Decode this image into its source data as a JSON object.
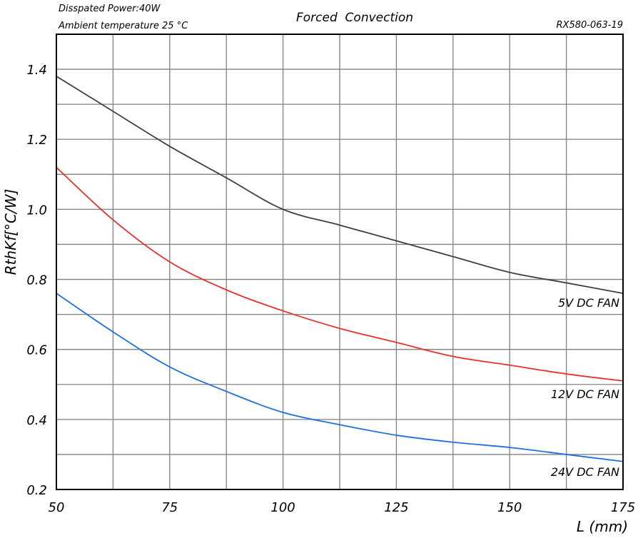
{
  "chart_data": {
    "type": "line",
    "title": "Forced  Convection",
    "notes": [
      "Disspated Power:40W",
      "Ambient temperature 25 °C"
    ],
    "code": "RX580-063-19",
    "xlabel": "L (mm)",
    "ylabel": "RthKf[°C/W]",
    "xlim": [
      50,
      175
    ],
    "ylim": [
      0.2,
      1.5
    ],
    "xticks": [
      "50",
      "75",
      "100",
      "125",
      "150",
      "175"
    ],
    "yticks": [
      "0.2",
      "0.4",
      "0.6",
      "0.8",
      "1.0",
      "1.2",
      "1.4"
    ],
    "grid": true,
    "x": [
      50,
      62.5,
      75,
      87.5,
      100,
      112.5,
      125,
      137.5,
      150,
      162.5,
      175
    ],
    "series": [
      {
        "name": "5V DC FAN",
        "color": "#404040",
        "values": [
          1.38,
          1.28,
          1.18,
          1.09,
          1.0,
          0.955,
          0.91,
          0.865,
          0.82,
          0.79,
          0.76
        ]
      },
      {
        "name": "12V DC FAN",
        "color": "#e8312f",
        "values": [
          1.12,
          0.97,
          0.85,
          0.77,
          0.71,
          0.66,
          0.62,
          0.58,
          0.555,
          0.53,
          0.51
        ]
      },
      {
        "name": "24V DC FAN",
        "color": "#1f6fe0",
        "values": [
          0.76,
          0.65,
          0.55,
          0.48,
          0.42,
          0.385,
          0.355,
          0.335,
          0.32,
          0.3,
          0.28
        ]
      }
    ]
  }
}
